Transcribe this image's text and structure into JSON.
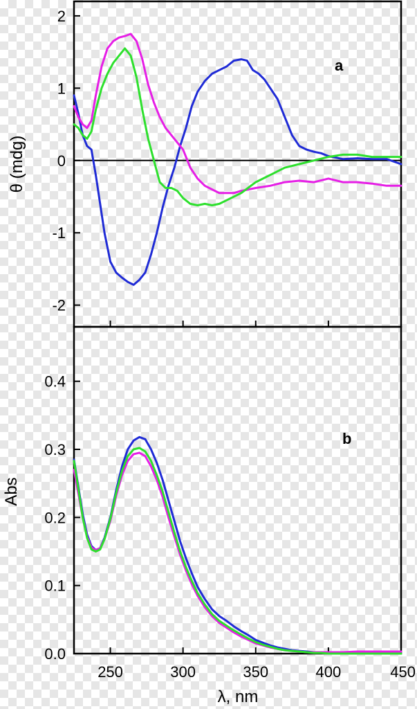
{
  "chart_data": [
    {
      "type": "line",
      "panel_label": "a",
      "ylabel": "θ (mdg)",
      "xlim": [
        225,
        450
      ],
      "ylim": [
        -2.3,
        2.2
      ],
      "yticks": [
        2,
        1,
        0,
        -1,
        -2
      ],
      "ytick_labels": [
        "2",
        "1",
        "0",
        "-1",
        "-2"
      ],
      "xticks": [
        250,
        300,
        350,
        400
      ],
      "zero_line": true,
      "series": [
        {
          "color": "#1f2bd6",
          "x": [
            225,
            228,
            231,
            234,
            237,
            240,
            243,
            246,
            250,
            254,
            258,
            262,
            266,
            270,
            274,
            278,
            282,
            286,
            290,
            294,
            298,
            302,
            306,
            310,
            315,
            320,
            325,
            330,
            335,
            340,
            344,
            348,
            352,
            356,
            360,
            365,
            370,
            375,
            380,
            385,
            390,
            395,
            400,
            410,
            420,
            430,
            440,
            450
          ],
          "y": [
            0.9,
            0.65,
            0.35,
            0.2,
            0.15,
            -0.2,
            -0.6,
            -1.0,
            -1.4,
            -1.55,
            -1.62,
            -1.68,
            -1.72,
            -1.65,
            -1.55,
            -1.3,
            -1.0,
            -0.65,
            -0.35,
            -0.1,
            0.2,
            0.45,
            0.75,
            0.95,
            1.1,
            1.2,
            1.25,
            1.3,
            1.38,
            1.4,
            1.38,
            1.25,
            1.2,
            1.12,
            1.0,
            0.85,
            0.6,
            0.35,
            0.2,
            0.15,
            0.12,
            0.1,
            0.06,
            0.02,
            0.03,
            0.02,
            0.02,
            -0.05
          ]
        },
        {
          "color": "#e61ee6",
          "x": [
            225,
            228,
            231,
            234,
            237,
            240,
            244,
            248,
            252,
            256,
            260,
            264,
            268,
            272,
            276,
            280,
            284,
            288,
            292,
            296,
            300,
            305,
            310,
            315,
            320,
            325,
            330,
            335,
            340,
            345,
            350,
            360,
            370,
            380,
            390,
            400,
            410,
            420,
            430,
            440,
            450
          ],
          "y": [
            0.75,
            0.6,
            0.5,
            0.45,
            0.55,
            0.9,
            1.3,
            1.55,
            1.65,
            1.7,
            1.72,
            1.75,
            1.65,
            1.4,
            1.05,
            0.8,
            0.6,
            0.45,
            0.35,
            0.25,
            0.15,
            -0.1,
            -0.25,
            -0.35,
            -0.4,
            -0.45,
            -0.45,
            -0.45,
            -0.42,
            -0.4,
            -0.38,
            -0.35,
            -0.3,
            -0.28,
            -0.3,
            -0.25,
            -0.3,
            -0.3,
            -0.32,
            -0.35,
            -0.35
          ]
        },
        {
          "color": "#2de02d",
          "x": [
            225,
            228,
            231,
            234,
            237,
            240,
            244,
            248,
            252,
            256,
            260,
            264,
            268,
            272,
            276,
            280,
            284,
            288,
            292,
            296,
            300,
            305,
            310,
            315,
            320,
            325,
            330,
            340,
            350,
            360,
            370,
            380,
            390,
            400,
            410,
            420,
            430,
            440,
            450
          ],
          "y": [
            0.5,
            0.45,
            0.35,
            0.3,
            0.4,
            0.7,
            1.0,
            1.2,
            1.35,
            1.45,
            1.55,
            1.45,
            1.15,
            0.7,
            0.3,
            0.0,
            -0.3,
            -0.38,
            -0.38,
            -0.42,
            -0.52,
            -0.6,
            -0.62,
            -0.6,
            -0.62,
            -0.6,
            -0.55,
            -0.45,
            -0.3,
            -0.2,
            -0.1,
            -0.05,
            0.0,
            0.05,
            0.08,
            0.08,
            0.05,
            0.05,
            0.05
          ]
        }
      ]
    },
    {
      "type": "line",
      "panel_label": "b",
      "ylabel": "Abs",
      "xlabel": "λ, nm",
      "xlim": [
        225,
        450
      ],
      "ylim": [
        0,
        0.48
      ],
      "yticks": [
        0.4,
        0.3,
        0.2,
        0.1,
        0.0
      ],
      "ytick_labels": [
        "0.4",
        "0.3",
        "0.2",
        "0.1",
        "0.0"
      ],
      "xticks": [
        250,
        300,
        350,
        400,
        450
      ],
      "xtick_labels": [
        "250",
        "300",
        "350",
        "400",
        "450"
      ],
      "series": [
        {
          "color": "#1f2bd6",
          "x": [
            225,
            228,
            231,
            234,
            237,
            240,
            243,
            246,
            250,
            254,
            258,
            262,
            266,
            270,
            274,
            278,
            282,
            286,
            290,
            294,
            298,
            302,
            306,
            310,
            315,
            320,
            325,
            330,
            335,
            340,
            345,
            350,
            355,
            360,
            365,
            370,
            375,
            380,
            385,
            390,
            395,
            400,
            410,
            420,
            430,
            440,
            450
          ],
          "y": [
            0.285,
            0.245,
            0.205,
            0.175,
            0.158,
            0.152,
            0.155,
            0.17,
            0.2,
            0.24,
            0.275,
            0.3,
            0.313,
            0.318,
            0.315,
            0.3,
            0.28,
            0.255,
            0.225,
            0.195,
            0.165,
            0.14,
            0.118,
            0.098,
            0.08,
            0.065,
            0.055,
            0.048,
            0.04,
            0.033,
            0.027,
            0.02,
            0.016,
            0.012,
            0.009,
            0.007,
            0.005,
            0.004,
            0.003,
            0.002,
            0.001,
            0.001,
            0.0,
            0.0,
            0.0,
            0.0,
            0.0
          ]
        },
        {
          "color": "#e61ee6",
          "x": [
            225,
            228,
            231,
            234,
            237,
            240,
            243,
            246,
            250,
            254,
            258,
            262,
            266,
            270,
            274,
            278,
            282,
            286,
            290,
            294,
            298,
            302,
            306,
            310,
            315,
            320,
            325,
            330,
            335,
            340,
            345,
            350,
            355,
            360,
            365,
            370,
            375,
            380,
            385,
            390,
            395,
            400,
            410,
            420,
            430,
            440,
            450
          ],
          "y": [
            0.27,
            0.235,
            0.2,
            0.172,
            0.156,
            0.152,
            0.155,
            0.168,
            0.195,
            0.232,
            0.262,
            0.283,
            0.293,
            0.295,
            0.29,
            0.275,
            0.255,
            0.23,
            0.2,
            0.172,
            0.145,
            0.122,
            0.102,
            0.085,
            0.068,
            0.055,
            0.045,
            0.038,
            0.031,
            0.025,
            0.02,
            0.015,
            0.012,
            0.009,
            0.007,
            0.005,
            0.004,
            0.003,
            0.002,
            0.002,
            0.002,
            0.002,
            0.002,
            0.003,
            0.003,
            0.003,
            0.003
          ]
        },
        {
          "color": "#2de02d",
          "x": [
            225,
            228,
            231,
            234,
            237,
            240,
            243,
            246,
            250,
            254,
            258,
            262,
            266,
            270,
            274,
            278,
            282,
            286,
            290,
            294,
            298,
            302,
            306,
            310,
            315,
            320,
            325,
            330,
            335,
            340,
            345,
            350,
            355,
            360,
            365,
            370,
            375,
            380,
            385,
            390,
            395,
            400,
            410,
            420,
            430,
            440,
            450
          ],
          "y": [
            0.283,
            0.242,
            0.2,
            0.17,
            0.153,
            0.15,
            0.153,
            0.168,
            0.198,
            0.236,
            0.268,
            0.29,
            0.3,
            0.302,
            0.297,
            0.283,
            0.262,
            0.238,
            0.208,
            0.178,
            0.15,
            0.127,
            0.107,
            0.089,
            0.072,
            0.058,
            0.048,
            0.041,
            0.034,
            0.028,
            0.022,
            0.017,
            0.013,
            0.01,
            0.007,
            0.005,
            0.004,
            0.003,
            0.002,
            0.001,
            0.001,
            0.0,
            0.0,
            0.0,
            0.0,
            0.0,
            0.0
          ]
        }
      ]
    }
  ]
}
